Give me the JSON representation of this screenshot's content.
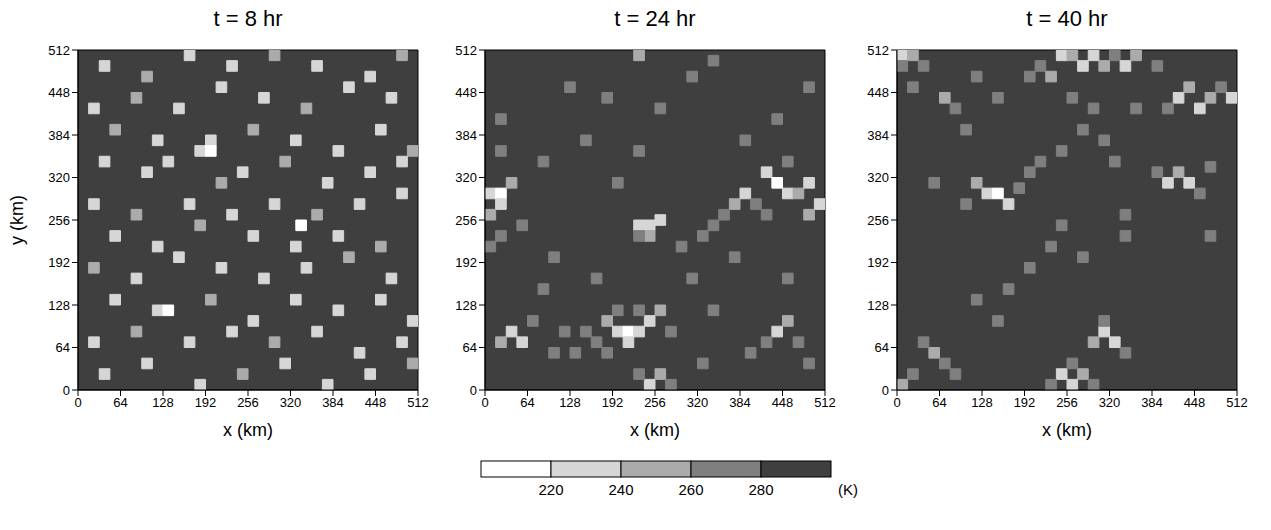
{
  "chart_data": [
    {
      "type": "heatmap",
      "title": "t = 8 hr",
      "x_label": "x (km)",
      "y_label": "y (km)",
      "xlim": [
        0,
        512
      ],
      "ylim": [
        0,
        512
      ],
      "xticks": [
        0,
        64,
        128,
        192,
        256,
        320,
        384,
        448,
        512
      ],
      "yticks": [
        0,
        64,
        128,
        192,
        256,
        320,
        384,
        448,
        512
      ],
      "cell_size": 16,
      "background": 290,
      "cells": [
        [
          40,
          488,
          230
        ],
        [
          104,
          472,
          250
        ],
        [
          168,
          504,
          230
        ],
        [
          232,
          488,
          230
        ],
        [
          296,
          504,
          250
        ],
        [
          360,
          488,
          230
        ],
        [
          440,
          472,
          230
        ],
        [
          488,
          504,
          250
        ],
        [
          24,
          424,
          230
        ],
        [
          88,
          440,
          250
        ],
        [
          152,
          424,
          230
        ],
        [
          216,
          456,
          230
        ],
        [
          280,
          440,
          230
        ],
        [
          344,
          424,
          250
        ],
        [
          408,
          456,
          230
        ],
        [
          472,
          440,
          230
        ],
        [
          56,
          392,
          250
        ],
        [
          120,
          376,
          230
        ],
        [
          184,
          360,
          230
        ],
        [
          200,
          376,
          230
        ],
        [
          264,
          392,
          250
        ],
        [
          328,
          376,
          230
        ],
        [
          392,
          360,
          230
        ],
        [
          456,
          392,
          230
        ],
        [
          504,
          360,
          250
        ],
        [
          40,
          344,
          230
        ],
        [
          104,
          328,
          230
        ],
        [
          136,
          344,
          230
        ],
        [
          216,
          312,
          250
        ],
        [
          248,
          328,
          230
        ],
        [
          312,
          344,
          250
        ],
        [
          376,
          312,
          230
        ],
        [
          440,
          328,
          230
        ],
        [
          488,
          344,
          230
        ],
        [
          24,
          280,
          230
        ],
        [
          88,
          264,
          250
        ],
        [
          168,
          280,
          230
        ],
        [
          232,
          264,
          230
        ],
        [
          296,
          280,
          230
        ],
        [
          360,
          264,
          250
        ],
        [
          424,
          280,
          230
        ],
        [
          488,
          296,
          230
        ],
        [
          56,
          232,
          230
        ],
        [
          120,
          216,
          230
        ],
        [
          184,
          248,
          250
        ],
        [
          264,
          232,
          230
        ],
        [
          328,
          216,
          230
        ],
        [
          392,
          232,
          230
        ],
        [
          456,
          216,
          250
        ],
        [
          24,
          184,
          250
        ],
        [
          88,
          168,
          230
        ],
        [
          152,
          200,
          230
        ],
        [
          216,
          184,
          230
        ],
        [
          280,
          168,
          230
        ],
        [
          344,
          184,
          230
        ],
        [
          408,
          200,
          250
        ],
        [
          472,
          168,
          230
        ],
        [
          56,
          136,
          230
        ],
        [
          120,
          120,
          230
        ],
        [
          136,
          120,
          210
        ],
        [
          200,
          136,
          250
        ],
        [
          264,
          104,
          230
        ],
        [
          328,
          136,
          230
        ],
        [
          392,
          120,
          230
        ],
        [
          456,
          136,
          230
        ],
        [
          504,
          104,
          230
        ],
        [
          24,
          72,
          230
        ],
        [
          88,
          88,
          250
        ],
        [
          168,
          72,
          230
        ],
        [
          232,
          88,
          230
        ],
        [
          296,
          72,
          250
        ],
        [
          360,
          88,
          230
        ],
        [
          424,
          56,
          230
        ],
        [
          488,
          72,
          230
        ],
        [
          40,
          24,
          230
        ],
        [
          104,
          40,
          230
        ],
        [
          184,
          8,
          230
        ],
        [
          248,
          24,
          250
        ],
        [
          312,
          40,
          230
        ],
        [
          376,
          8,
          230
        ],
        [
          440,
          24,
          230
        ],
        [
          504,
          40,
          250
        ],
        [
          200,
          360,
          210
        ],
        [
          336,
          248,
          210
        ]
      ]
    },
    {
      "type": "heatmap",
      "title": "t = 24 hr",
      "x_label": "x (km)",
      "xlim": [
        0,
        512
      ],
      "ylim": [
        0,
        512
      ],
      "xticks": [
        0,
        64,
        128,
        192,
        256,
        320,
        384,
        448,
        512
      ],
      "yticks": [
        0,
        64,
        128,
        192,
        256,
        320,
        384,
        448,
        512
      ],
      "cell_size": 16,
      "background": 290,
      "cells": [
        [
          8,
          296,
          230
        ],
        [
          24,
          296,
          210
        ],
        [
          24,
          280,
          230
        ],
        [
          40,
          312,
          250
        ],
        [
          8,
          264,
          250
        ],
        [
          8,
          216,
          270
        ],
        [
          24,
          232,
          270
        ],
        [
          232,
          248,
          230
        ],
        [
          248,
          248,
          230
        ],
        [
          264,
          256,
          230
        ],
        [
          248,
          232,
          250
        ],
        [
          232,
          232,
          270
        ],
        [
          184,
          104,
          250
        ],
        [
          200,
          88,
          230
        ],
        [
          216,
          88,
          210
        ],
        [
          232,
          88,
          230
        ],
        [
          216,
          72,
          230
        ],
        [
          248,
          104,
          230
        ],
        [
          264,
          120,
          250
        ],
        [
          168,
          72,
          270
        ],
        [
          152,
          88,
          270
        ],
        [
          136,
          56,
          270
        ],
        [
          280,
          88,
          270
        ],
        [
          232,
          120,
          270
        ],
        [
          200,
          120,
          270
        ],
        [
          184,
          56,
          270
        ],
        [
          40,
          88,
          230
        ],
        [
          56,
          72,
          230
        ],
        [
          24,
          72,
          250
        ],
        [
          72,
          104,
          270
        ],
        [
          104,
          56,
          270
        ],
        [
          120,
          88,
          270
        ],
        [
          248,
          8,
          230
        ],
        [
          264,
          24,
          250
        ],
        [
          232,
          24,
          270
        ],
        [
          280,
          8,
          270
        ],
        [
          424,
          328,
          230
        ],
        [
          440,
          312,
          210
        ],
        [
          456,
          296,
          230
        ],
        [
          392,
          296,
          230
        ],
        [
          376,
          280,
          250
        ],
        [
          408,
          280,
          270
        ],
        [
          472,
          296,
          250
        ],
        [
          488,
          312,
          230
        ],
        [
          504,
          280,
          230
        ],
        [
          488,
          264,
          250
        ],
        [
          424,
          264,
          270
        ],
        [
          360,
          264,
          270
        ],
        [
          344,
          248,
          270
        ],
        [
          456,
          344,
          270
        ],
        [
          328,
          232,
          270
        ],
        [
          296,
          216,
          270
        ],
        [
          440,
          88,
          230
        ],
        [
          456,
          104,
          250
        ],
        [
          424,
          72,
          270
        ],
        [
          472,
          72,
          270
        ],
        [
          400,
          56,
          270
        ],
        [
          488,
          40,
          270
        ],
        [
          232,
          504,
          250
        ],
        [
          344,
          496,
          270
        ],
        [
          128,
          456,
          270
        ],
        [
          184,
          440,
          270
        ],
        [
          264,
          424,
          270
        ],
        [
          312,
          472,
          270
        ],
        [
          24,
          408,
          270
        ],
        [
          440,
          408,
          270
        ],
        [
          488,
          456,
          270
        ],
        [
          152,
          376,
          270
        ],
        [
          232,
          360,
          270
        ],
        [
          392,
          376,
          270
        ],
        [
          88,
          344,
          270
        ],
        [
          200,
          312,
          270
        ],
        [
          104,
          200,
          270
        ],
        [
          168,
          168,
          270
        ],
        [
          312,
          168,
          270
        ],
        [
          376,
          200,
          270
        ],
        [
          88,
          152,
          270
        ],
        [
          328,
          40,
          270
        ],
        [
          344,
          120,
          270
        ],
        [
          456,
          168,
          270
        ],
        [
          56,
          248,
          270
        ],
        [
          24,
          360,
          270
        ]
      ]
    },
    {
      "type": "heatmap",
      "title": "t = 40 hr",
      "x_label": "x (km)",
      "xlim": [
        0,
        512
      ],
      "ylim": [
        0,
        512
      ],
      "xticks": [
        0,
        64,
        128,
        192,
        256,
        320,
        384,
        448,
        512
      ],
      "yticks": [
        0,
        64,
        128,
        192,
        256,
        320,
        384,
        448,
        512
      ],
      "cell_size": 16,
      "background": 290,
      "cells": [
        [
          8,
          504,
          230
        ],
        [
          24,
          504,
          250
        ],
        [
          8,
          488,
          270
        ],
        [
          40,
          488,
          270
        ],
        [
          248,
          504,
          230
        ],
        [
          264,
          504,
          250
        ],
        [
          280,
          488,
          230
        ],
        [
          296,
          504,
          230
        ],
        [
          312,
          488,
          250
        ],
        [
          328,
          504,
          270
        ],
        [
          344,
          488,
          230
        ],
        [
          360,
          504,
          250
        ],
        [
          392,
          488,
          270
        ],
        [
          216,
          488,
          270
        ],
        [
          200,
          472,
          270
        ],
        [
          232,
          472,
          250
        ],
        [
          424,
          440,
          230
        ],
        [
          440,
          456,
          250
        ],
        [
          456,
          424,
          230
        ],
        [
          472,
          440,
          250
        ],
        [
          408,
          424,
          270
        ],
        [
          488,
          456,
          270
        ],
        [
          504,
          440,
          230
        ],
        [
          72,
          440,
          250
        ],
        [
          88,
          424,
          270
        ],
        [
          24,
          456,
          270
        ],
        [
          120,
          472,
          270
        ],
        [
          152,
          440,
          270
        ],
        [
          104,
          392,
          270
        ],
        [
          136,
          296,
          230
        ],
        [
          152,
          296,
          210
        ],
        [
          168,
          280,
          230
        ],
        [
          120,
          312,
          250
        ],
        [
          184,
          304,
          270
        ],
        [
          104,
          280,
          270
        ],
        [
          200,
          328,
          270
        ],
        [
          56,
          312,
          270
        ],
        [
          216,
          344,
          270
        ],
        [
          248,
          360,
          270
        ],
        [
          280,
          392,
          270
        ],
        [
          312,
          376,
          270
        ],
        [
          328,
          344,
          270
        ],
        [
          408,
          312,
          230
        ],
        [
          424,
          328,
          250
        ],
        [
          440,
          312,
          230
        ],
        [
          392,
          328,
          270
        ],
        [
          456,
          296,
          270
        ],
        [
          472,
          336,
          270
        ],
        [
          296,
          424,
          270
        ],
        [
          264,
          440,
          270
        ],
        [
          360,
          424,
          270
        ],
        [
          312,
          88,
          230
        ],
        [
          328,
          72,
          230
        ],
        [
          296,
          72,
          250
        ],
        [
          312,
          104,
          270
        ],
        [
          344,
          56,
          270
        ],
        [
          248,
          24,
          230
        ],
        [
          264,
          8,
          230
        ],
        [
          280,
          24,
          250
        ],
        [
          232,
          8,
          270
        ],
        [
          296,
          8,
          270
        ],
        [
          264,
          40,
          270
        ],
        [
          56,
          56,
          250
        ],
        [
          72,
          40,
          270
        ],
        [
          88,
          24,
          270
        ],
        [
          40,
          72,
          270
        ],
        [
          120,
          136,
          270
        ],
        [
          168,
          152,
          270
        ],
        [
          152,
          104,
          270
        ],
        [
          232,
          216,
          270
        ],
        [
          280,
          200,
          270
        ],
        [
          248,
          248,
          270
        ],
        [
          344,
          264,
          270
        ],
        [
          200,
          184,
          270
        ],
        [
          344,
          232,
          270
        ],
        [
          472,
          232,
          270
        ],
        [
          8,
          8,
          250
        ],
        [
          24,
          24,
          270
        ]
      ]
    }
  ],
  "colorbar": {
    "range": [
      200,
      300
    ],
    "ticks": [
      220,
      240,
      260,
      280
    ],
    "label": "(K)",
    "colors": [
      "#ffffff",
      "#d6d6d6",
      "#ababab",
      "#7f7f7f",
      "#3f3f3f"
    ]
  }
}
